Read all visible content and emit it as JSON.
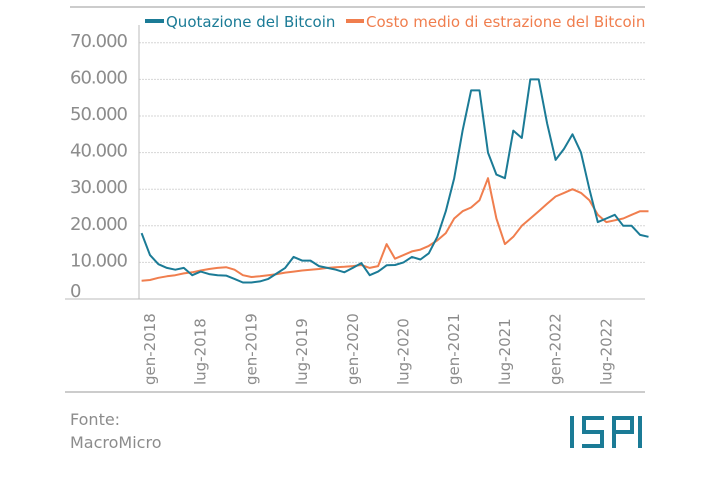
{
  "chart_data": {
    "type": "line",
    "title": "",
    "xlabel": "",
    "ylabel": "",
    "ylim": [
      0,
      70000
    ],
    "yticks": [
      "0",
      "10.000",
      "20.000",
      "30.000",
      "40.000",
      "50.000",
      "60.000",
      "70.000"
    ],
    "ytick_values": [
      0,
      10000,
      20000,
      30000,
      40000,
      50000,
      60000,
      70000
    ],
    "xticks": [
      "gen-2018",
      "lug-2018",
      "gen-2019",
      "lug-2019",
      "gen-2020",
      "lug-2020",
      "gen-2021",
      "lug-2021",
      "gen-2022",
      "lug-2022"
    ],
    "xtick_dates": [
      "2018-01",
      "2018-07",
      "2019-01",
      "2019-07",
      "2020-01",
      "2020-07",
      "2021-01",
      "2021-07",
      "2022-01",
      "2022-07"
    ],
    "grid": true,
    "legend_position": "top",
    "x": [
      "2017-12",
      "2018-01",
      "2018-02",
      "2018-03",
      "2018-04",
      "2018-05",
      "2018-06",
      "2018-07",
      "2018-08",
      "2018-09",
      "2018-10",
      "2018-11",
      "2018-12",
      "2019-01",
      "2019-02",
      "2019-03",
      "2019-04",
      "2019-05",
      "2019-06",
      "2019-07",
      "2019-08",
      "2019-09",
      "2019-10",
      "2019-11",
      "2019-12",
      "2020-01",
      "2020-02",
      "2020-03",
      "2020-04",
      "2020-05",
      "2020-06",
      "2020-07",
      "2020-08",
      "2020-09",
      "2020-10",
      "2020-11",
      "2020-12",
      "2021-01",
      "2021-02",
      "2021-03",
      "2021-04",
      "2021-05",
      "2021-06",
      "2021-07",
      "2021-08",
      "2021-09",
      "2021-10",
      "2021-11",
      "2021-12",
      "2022-01",
      "2022-02",
      "2022-03",
      "2022-04",
      "2022-05",
      "2022-06",
      "2022-07",
      "2022-08",
      "2022-09",
      "2022-10",
      "2022-11",
      "2022-12"
    ],
    "series": [
      {
        "name": "Quotazione del Bitcoin",
        "color": "#1b7b96",
        "values": [
          18000,
          12000,
          9500,
          8500,
          8000,
          8500,
          6500,
          7500,
          6800,
          6500,
          6400,
          5500,
          4500,
          4500,
          4800,
          5500,
          7000,
          8500,
          11500,
          10500,
          10500,
          9000,
          8500,
          8000,
          7300,
          8500,
          9800,
          6500,
          7500,
          9200,
          9300,
          10000,
          11500,
          10800,
          12500,
          17000,
          24000,
          33000,
          46000,
          57000,
          57000,
          40000,
          34000,
          33000,
          46000,
          44000,
          60000,
          60000,
          48000,
          38000,
          41000,
          45000,
          40000,
          30000,
          21000,
          22000,
          23000,
          20000,
          20000,
          17500,
          17000
        ]
      },
      {
        "name": "Costo medio di estrazione del Bitcoin",
        "color": "#f07e4e",
        "values": [
          5000,
          5200,
          5800,
          6200,
          6500,
          7000,
          7300,
          7800,
          8200,
          8500,
          8700,
          8000,
          6500,
          6000,
          6200,
          6500,
          6800,
          7200,
          7500,
          7800,
          8000,
          8200,
          8500,
          8700,
          8800,
          9000,
          9300,
          8500,
          9000,
          15000,
          11000,
          12000,
          13000,
          13500,
          14500,
          16000,
          18000,
          22000,
          24000,
          25000,
          27000,
          33000,
          22000,
          15000,
          17000,
          20000,
          22000,
          24000,
          26000,
          28000,
          29000,
          30000,
          29000,
          27000,
          23000,
          21000,
          21500,
          22000,
          23000,
          24000,
          24000
        ]
      }
    ]
  },
  "source": {
    "label": "Fonte:",
    "name": "MacroMicro"
  },
  "logo": {
    "text": "ISPI",
    "color": "#1b7b96"
  }
}
